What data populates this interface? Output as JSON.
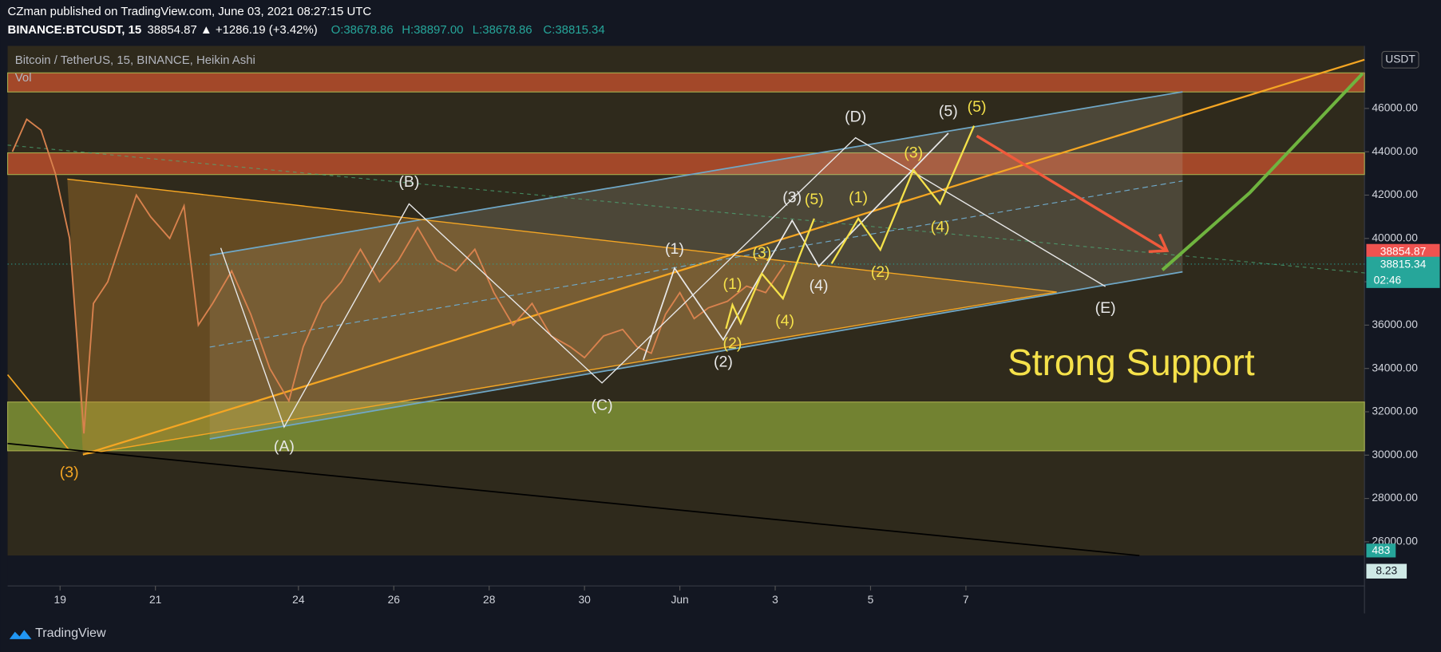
{
  "chart_data": {
    "type": "line",
    "header": "CZman published on TradingView.com, June 03, 2021 08:27:15 UTC",
    "symbol": "BINANCE:BTCUSDT, 15",
    "quote": "38854.87 ▲ +1286.19 (+3.42%)",
    "ohlc": [
      "O:38678.86",
      "H:38897.00",
      "L:38678.86",
      "C:38815.34"
    ],
    "title": "Bitcoin / TetherUS, 15, BINANCE, Heikin Ashi",
    "volume_label": "Vol",
    "currency": "USDT",
    "last_price": {
      "value": 38854.87,
      "label": "38854.87"
    },
    "close_price": {
      "value": 38815.34,
      "label": "38815.34"
    },
    "countdown": "02:46",
    "volume_badge": "483",
    "oscillator_badge": "8.23",
    "footer": "TradingView",
    "x": [
      18,
      18.3,
      18.6,
      18.9,
      19.2,
      19.5,
      19.7,
      20,
      20.3,
      20.6,
      20.9,
      21.3,
      21.6,
      21.9,
      22.2,
      22.6,
      23,
      23.4,
      23.8,
      24.1,
      24.5,
      24.9,
      25.3,
      25.7,
      26.1,
      26.5,
      26.9,
      27.3,
      27.7,
      28.1,
      28.5,
      28.9,
      29.3,
      29.7,
      30,
      30.4,
      30.8,
      31.1,
      31.4,
      31.7,
      32,
      32.3,
      32.6,
      33,
      33.4,
      33.8,
      34.2
    ],
    "series": [
      {
        "name": "BTCUSDT",
        "color": "#d9824e",
        "values": [
          44000,
          45500,
          45000,
          43000,
          40000,
          31000,
          37000,
          38000,
          40000,
          42000,
          41000,
          40000,
          41500,
          36000,
          37000,
          38500,
          36500,
          34000,
          32500,
          35000,
          37000,
          38000,
          39500,
          38000,
          39000,
          40500,
          39000,
          38500,
          39500,
          37500,
          36000,
          37000,
          35500,
          35000,
          34500,
          35500,
          35800,
          35000,
          34700,
          36500,
          37500,
          36300,
          36800,
          37100,
          37800,
          37500,
          38800
        ]
      }
    ],
    "xlim": [
      17.9,
      46.36
    ],
    "xticks": [
      19,
      21,
      24,
      26,
      28,
      30,
      {
        "value": 32,
        "label": "Jun"
      },
      {
        "value": 34,
        "label": "3"
      },
      {
        "value": 36,
        "label": "5"
      },
      {
        "value": 38,
        "label": "7"
      }
    ],
    "ylim": [
      25364,
      48885
    ],
    "yticks": [
      {
        "value": 26000,
        "label": "26000.00"
      },
      {
        "value": 28000,
        "label": "28000.00"
      },
      {
        "value": 30000,
        "label": "30000.00"
      },
      {
        "value": 32000,
        "label": "32000.00"
      },
      {
        "value": 34000,
        "label": "34000.00"
      },
      {
        "value": 36000,
        "label": "36000.00"
      },
      {
        "value": 38000,
        "label": "38000.00"
      },
      {
        "value": 40000,
        "label": "40000.00"
      },
      {
        "value": 42000,
        "label": "42000.00"
      },
      {
        "value": 44000,
        "label": "44000.00"
      },
      {
        "value": 46000,
        "label": "46000.00"
      }
    ],
    "zones": [
      {
        "from": 42950,
        "to": 43950,
        "color": "#d4552f"
      },
      {
        "from": 46760,
        "to": 47640,
        "color": "#d4552f"
      },
      {
        "from": 30200,
        "to": 32450,
        "color": "#8fa83a"
      }
    ],
    "annotations": [
      {
        "text": "(3)",
        "color": "#f5a623"
      },
      {
        "text": "(A)",
        "color": "#e8e8e8"
      },
      {
        "text": "(B)",
        "color": "#e8e8e8"
      },
      {
        "text": "(C)",
        "color": "#e8e8e8"
      },
      {
        "text": "(D)",
        "color": "#e8e8e8"
      },
      {
        "text": "(E)",
        "color": "#e8e8e8"
      },
      {
        "text": "(1)",
        "color": "#e8e8e8"
      },
      {
        "text": "(2)",
        "color": "#e8e8e8"
      },
      {
        "text": "(3)",
        "color": "#e8e8e8"
      },
      {
        "text": "(4)",
        "color": "#e8e8e8"
      },
      {
        "text": "(5)",
        "color": "#e8e8e8"
      },
      {
        "text": "(1)",
        "color": "#f5e14a"
      },
      {
        "text": "(2)",
        "color": "#f5e14a"
      },
      {
        "text": "(3)",
        "color": "#f5e14a"
      },
      {
        "text": "(4)",
        "color": "#f5e14a"
      },
      {
        "text": "(5)",
        "color": "#f5e14a"
      },
      {
        "text": "(1)",
        "color": "#f5e14a"
      },
      {
        "text": "(2)",
        "color": "#f5e14a"
      },
      {
        "text": "(3)",
        "color": "#f5e14a"
      },
      {
        "text": "(4)",
        "color": "#f5e14a"
      },
      {
        "text": "(5)",
        "color": "#f5e14a"
      },
      {
        "text": "Strong Support",
        "color": "#f5e14a"
      }
    ]
  }
}
